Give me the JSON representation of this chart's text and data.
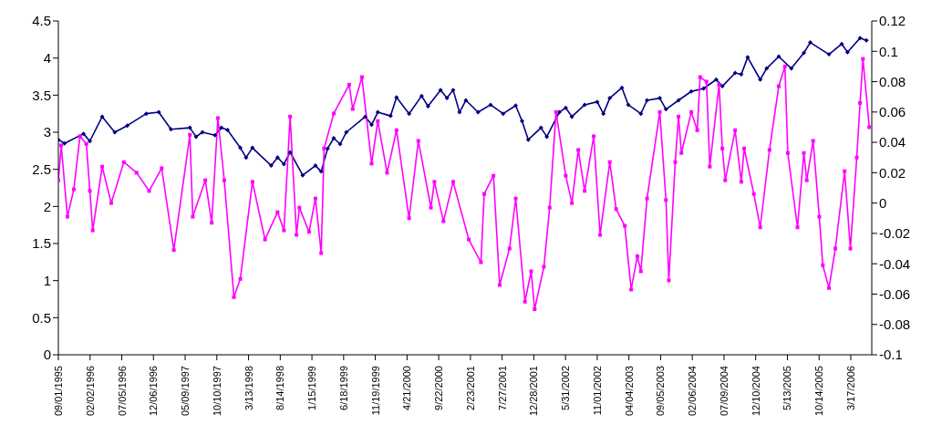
{
  "chart_data": {
    "type": "line",
    "xlim": [
      "1995-09-01",
      "2006-06-27"
    ],
    "xticks": [
      {
        "value": "1995-09-01",
        "label": "09/01/1995"
      },
      {
        "value": "1996-02-02",
        "label": "02/02/1996"
      },
      {
        "value": "1996-07-05",
        "label": "07/05/1996"
      },
      {
        "value": "1996-12-06",
        "label": "12/06/1996"
      },
      {
        "value": "1997-05-09",
        "label": "05/09/1997"
      },
      {
        "value": "1997-10-10",
        "label": "10/10/1997"
      },
      {
        "value": "1998-03-13",
        "label": "3/13/1998"
      },
      {
        "value": "1998-08-14",
        "label": "8/14/1998"
      },
      {
        "value": "1999-01-15",
        "label": "1/15/1999"
      },
      {
        "value": "1999-06-18",
        "label": "6/18/1999"
      },
      {
        "value": "1999-11-19",
        "label": "11/19/1999"
      },
      {
        "value": "2000-04-21",
        "label": "4/21/2000"
      },
      {
        "value": "2000-09-22",
        "label": "9/22/2000"
      },
      {
        "value": "2001-02-23",
        "label": "2/23/2001"
      },
      {
        "value": "2001-07-27",
        "label": "7/27/2001"
      },
      {
        "value": "2001-12-28",
        "label": "12/28/2001"
      },
      {
        "value": "2002-05-31",
        "label": "5/31/2002"
      },
      {
        "value": "2002-11-01",
        "label": "11/01/2002"
      },
      {
        "value": "2003-04-04",
        "label": "04/04/2003"
      },
      {
        "value": "2003-09-05",
        "label": "09/05/2003"
      },
      {
        "value": "2004-02-06",
        "label": "02/06/2004"
      },
      {
        "value": "2004-07-09",
        "label": "07/09/2004"
      },
      {
        "value": "2004-12-10",
        "label": "12/10/2004"
      },
      {
        "value": "2005-05-13",
        "label": "5/13/2005"
      },
      {
        "value": "2005-10-14",
        "label": "10/14/2005"
      },
      {
        "value": "2006-03-17",
        "label": "3/17/2006"
      }
    ],
    "ylim": [
      0,
      4.5
    ],
    "yticks": [
      0,
      0.5,
      1,
      1.5,
      2,
      2.5,
      3,
      3.5,
      4,
      4.5
    ],
    "y2lim": [
      -0.1,
      0.12
    ],
    "y2ticks": [
      -0.1,
      -0.08,
      -0.06,
      -0.04,
      -0.02,
      0,
      0.02,
      0.04,
      0.06,
      0.08,
      0.1,
      0.12
    ],
    "grid": false,
    "legend": false,
    "line_style": "solid",
    "series": [
      {
        "color": "#000080",
        "marker": "diamond",
        "x": [
          "1995-09",
          "1995-10",
          "1996-01",
          "1996-02",
          "1996-04",
          "1996-06",
          "1996-08",
          "1996-11",
          "1997-01",
          "1997-03",
          "1997-06",
          "1997-07",
          "1997-08",
          "1997-10",
          "1997-11",
          "1997-12",
          "1998-02",
          "1998-03",
          "1998-04",
          "1998-07",
          "1998-08",
          "1998-09",
          "1998-10",
          "1998-12",
          "1999-02",
          "1999-03",
          "1999-04",
          "1999-05",
          "1999-06",
          "1999-07",
          "1999-10",
          "1999-11",
          "1999-12",
          "2000-02",
          "2000-03",
          "2000-05",
          "2000-07",
          "2000-08",
          "2000-10",
          "2000-11",
          "2000-12",
          "2001-01",
          "2001-02",
          "2001-04",
          "2001-06",
          "2001-08",
          "2001-10",
          "2001-11",
          "2001-12",
          "2002-02",
          "2002-03",
          "2002-05",
          "2002-06",
          "2002-07",
          "2002-09",
          "2002-11",
          "2002-12",
          "2003-01",
          "2003-03",
          "2003-04",
          "2003-06",
          "2003-07",
          "2003-09",
          "2003-10",
          "2003-12",
          "2004-02",
          "2004-04",
          "2004-06",
          "2004-07",
          "2004-09",
          "2004-10",
          "2004-11",
          "2005-01",
          "2005-02",
          "2005-04",
          "2005-06",
          "2005-08",
          "2005-09",
          "2005-12",
          "2006-02",
          "2006-03",
          "2006-05",
          "2006-06"
        ],
        "values": [
          2.9,
          2.85,
          2.98,
          2.88,
          3.21,
          3.0,
          3.09,
          3.25,
          3.27,
          3.04,
          3.06,
          2.94,
          3.0,
          2.96,
          3.06,
          3.03,
          2.79,
          2.66,
          2.79,
          2.55,
          2.66,
          2.57,
          2.73,
          2.42,
          2.55,
          2.47,
          2.78,
          2.92,
          2.84,
          3.0,
          3.21,
          3.1,
          3.27,
          3.22,
          3.47,
          3.25,
          3.49,
          3.35,
          3.57,
          3.46,
          3.57,
          3.27,
          3.43,
          3.27,
          3.37,
          3.25,
          3.36,
          3.15,
          2.9,
          3.06,
          2.94,
          3.27,
          3.33,
          3.21,
          3.37,
          3.41,
          3.25,
          3.46,
          3.6,
          3.37,
          3.25,
          3.43,
          3.46,
          3.31,
          3.43,
          3.55,
          3.59,
          3.71,
          3.62,
          3.8,
          3.78,
          4.01,
          3.71,
          3.86,
          4.02,
          3.86,
          4.07,
          4.21,
          4.05,
          4.19,
          4.08,
          4.27,
          4.24
        ]
      },
      {
        "color": "#ff00ff",
        "marker": "square",
        "axis": "y2",
        "x": [
          "1995-09-01",
          "1995-09-15",
          "1995-10-15",
          "1995-11-15",
          "1995-12-15",
          "1996-01-15",
          "1996-02-01",
          "1996-02-15",
          "1996-04-01",
          "1996-05-15",
          "1996-07-15",
          "1996-09-15",
          "1996-11-15",
          "1997-01-15",
          "1997-03-15",
          "1997-06-01",
          "1997-06-15",
          "1997-08-15",
          "1997-09-15",
          "1997-10-15",
          "1997-11-15",
          "1998-01-01",
          "1998-02-01",
          "1998-04-01",
          "1998-06-01",
          "1998-08-01",
          "1998-09-01",
          "1998-10-01",
          "1998-11-01",
          "1998-11-15",
          "1999-01-01",
          "1999-02-01",
          "1999-03-01",
          "1999-03-15",
          "1999-05-01",
          "1999-07-15",
          "1999-08-01",
          "1999-09-15",
          "1999-11-01",
          "1999-12-01",
          "2000-01-15",
          "2000-03-01",
          "2000-05-01",
          "2000-06-15",
          "2000-08-15",
          "2000-09-01",
          "2000-10-15",
          "2000-12-01",
          "2001-02-15",
          "2001-04-15",
          "2001-05-01",
          "2001-06-15",
          "2001-07-15",
          "2001-09-01",
          "2001-10-01",
          "2001-11-15",
          "2001-12-15",
          "2002-01-01",
          "2002-02-15",
          "2002-03-15",
          "2002-04-15",
          "2002-06-01",
          "2002-07-01",
          "2002-08-01",
          "2002-09-01",
          "2002-10-15",
          "2002-11-15",
          "2003-01-01",
          "2003-02-01",
          "2003-03-15",
          "2003-04-15",
          "2003-05-15",
          "2003-06-01",
          "2003-07-01",
          "2003-09-01",
          "2003-10-01",
          "2003-10-15",
          "2003-11-15",
          "2003-12-01",
          "2003-12-15",
          "2004-02-01",
          "2004-03-01",
          "2004-03-15",
          "2004-04-15",
          "2004-05-01",
          "2004-06-15",
          "2004-07-01",
          "2004-07-15",
          "2004-09-01",
          "2004-10-01",
          "2004-10-15",
          "2004-12-01",
          "2005-01-01",
          "2005-02-15",
          "2005-04-01",
          "2005-05-01",
          "2005-05-15",
          "2005-07-01",
          "2005-08-01",
          "2005-08-15",
          "2005-09-15",
          "2005-10-15",
          "2005-11-01",
          "2005-12-01",
          "2006-01-01",
          "2006-02-15",
          "2006-03-15",
          "2006-04-15",
          "2006-05-01",
          "2006-05-15",
          "2006-06-15"
        ],
        "values": [
          0.015,
          0.038,
          -0.009,
          0.009,
          0.044,
          0.039,
          0.008,
          -0.018,
          0.024,
          0.0,
          0.027,
          0.02,
          0.008,
          0.023,
          -0.031,
          0.045,
          -0.009,
          0.015,
          -0.013,
          0.056,
          0.015,
          -0.062,
          -0.05,
          0.014,
          -0.024,
          -0.006,
          -0.018,
          0.057,
          -0.021,
          -0.003,
          -0.019,
          0.003,
          -0.033,
          0.036,
          0.059,
          0.078,
          0.062,
          0.083,
          0.026,
          0.054,
          0.02,
          0.048,
          -0.01,
          0.041,
          -0.003,
          0.014,
          -0.012,
          0.014,
          -0.024,
          -0.039,
          0.006,
          0.018,
          -0.054,
          -0.03,
          0.003,
          -0.065,
          -0.045,
          -0.07,
          -0.042,
          -0.003,
          0.06,
          0.018,
          0.0,
          0.035,
          0.008,
          0.044,
          -0.021,
          0.027,
          -0.004,
          -0.015,
          -0.057,
          -0.035,
          -0.045,
          0.003,
          0.06,
          0.002,
          -0.051,
          0.027,
          0.057,
          0.033,
          0.06,
          0.048,
          0.083,
          0.08,
          0.024,
          0.078,
          0.036,
          0.015,
          0.048,
          0.014,
          0.036,
          0.006,
          -0.016,
          0.035,
          0.077,
          0.09,
          0.033,
          -0.016,
          0.033,
          0.015,
          0.041,
          -0.009,
          -0.041,
          -0.056,
          -0.03,
          0.021,
          -0.03,
          0.03,
          0.066,
          0.095,
          0.05
        ]
      }
    ]
  }
}
